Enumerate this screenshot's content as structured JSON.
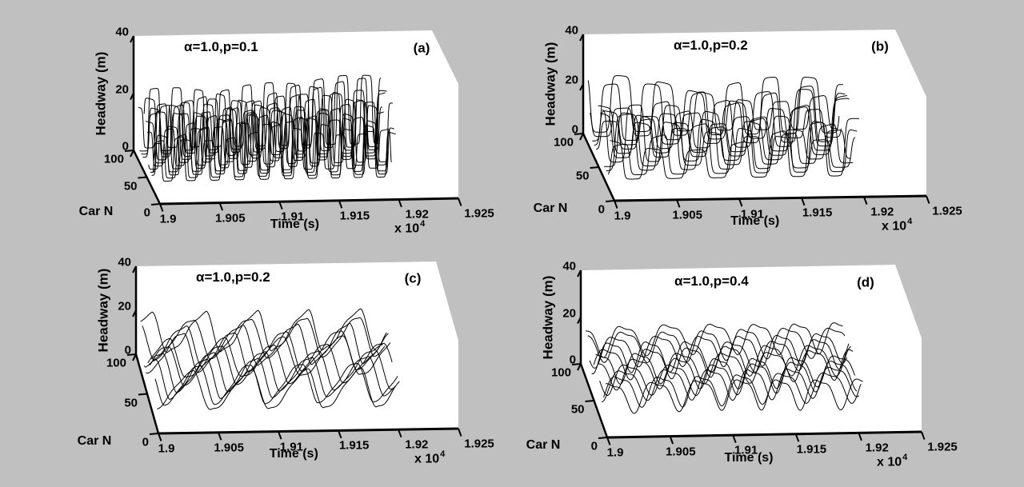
{
  "figure": {
    "type": "matlab-3d-waterfall-figure",
    "background_color": "#c0c0c0",
    "plot_background_color": "#ffffff",
    "line_color": "#000000",
    "description": "Four 3D wireframe subplots of vehicle headway vs time vs car number for different randomization probabilities p"
  },
  "chart_data": [
    {
      "panel": "a",
      "letter": "(a)",
      "annotation": "α=1.0,p=0.1",
      "type": "line3d-waterfall",
      "xlabel": "Time (s)",
      "ylabel": "Car N",
      "zlabel": "Headway (m)",
      "x_tick_labels": [
        "1.9",
        "1.905",
        "1.91",
        "1.915",
        "1.92",
        "1.925"
      ],
      "x_tick_values_s": [
        19000,
        19050,
        19100,
        19150,
        19200,
        19250
      ],
      "x_scale_label": "x 10",
      "x_scale_exponent": "4",
      "y_tick_labels": [
        "100",
        "50",
        "0"
      ],
      "z_tick_labels": [
        "40",
        "20",
        "0"
      ],
      "x_range_s": [
        19000,
        19250
      ],
      "y_range_cars": [
        0,
        100
      ],
      "z_range_m": [
        0,
        40
      ],
      "wave": {
        "shape": "pulse",
        "cycles": 13,
        "base_m": 1.5,
        "amp_m": 23,
        "gain": 4.5,
        "n_curves": 12,
        "car_back": 96,
        "car_front": 34,
        "t_end_frac": 0.82,
        "delay_span_frac": 0.14,
        "seed": 11
      }
    },
    {
      "panel": "b",
      "letter": "(b)",
      "annotation": "α=1.0,p=0.2",
      "type": "line3d-waterfall",
      "xlabel": "Time (s)",
      "ylabel": "Car N",
      "zlabel": "Headway (m)",
      "x_tick_labels": [
        "1.9",
        "1.905",
        "1.91",
        "1.915",
        "1.92",
        "1.925"
      ],
      "x_tick_values_s": [
        19000,
        19050,
        19100,
        19150,
        19200,
        19250
      ],
      "x_scale_label": "x 10",
      "x_scale_exponent": "4",
      "y_tick_labels": [
        "100",
        "50",
        "0"
      ],
      "z_tick_labels": [
        "40",
        "20",
        "0"
      ],
      "x_range_s": [
        19000,
        19250
      ],
      "y_range_cars": [
        0,
        100
      ],
      "z_range_m": [
        0,
        40
      ],
      "wave": {
        "shape": "pulse",
        "cycles": 8,
        "base_m": 1.5,
        "amp_m": 22,
        "gain": 3.5,
        "n_curves": 12,
        "car_back": 96,
        "car_front": 26,
        "t_end_frac": 0.81,
        "delay_span_frac": 0.22,
        "seed": 22
      }
    },
    {
      "panel": "c",
      "letter": "(c)",
      "annotation": "α=1.0,p=0.2",
      "type": "line3d-waterfall",
      "xlabel": "Time (s)",
      "ylabel": "Car N",
      "zlabel": "Headway (m)",
      "x_tick_labels": [
        "1.9",
        "1.905",
        "1.91",
        "1.915",
        "1.92",
        "1.925"
      ],
      "x_tick_values_s": [
        19000,
        19050,
        19100,
        19150,
        19200,
        19250
      ],
      "x_scale_label": "x 10",
      "x_scale_exponent": "4",
      "y_tick_labels": [
        "100",
        "50",
        "0"
      ],
      "z_tick_labels": [
        "40",
        "20",
        "0"
      ],
      "x_range_s": [
        19000,
        19250
      ],
      "y_range_cars": [
        0,
        100
      ],
      "z_range_m": [
        0,
        40
      ],
      "wave": {
        "shape": "sawtooth",
        "cycles": 5.5,
        "base_m": 2,
        "amp_m": 18,
        "gain": 0,
        "n_curves": 10,
        "car_back": 96,
        "car_front": 22,
        "t_end_frac": 0.82,
        "delay_span_frac": 0.27,
        "seed": 33
      }
    },
    {
      "panel": "d",
      "letter": "(d)",
      "annotation": "α=1.0,p=0.4",
      "type": "line3d-waterfall",
      "xlabel": "Time (s)",
      "ylabel": "Car N",
      "zlabel": "Headway (m)",
      "x_tick_labels": [
        "1.9",
        "1.905",
        "1.91",
        "1.915",
        "1.92",
        "1.925"
      ],
      "x_tick_values_s": [
        19000,
        19050,
        19100,
        19150,
        19200,
        19250
      ],
      "x_scale_label": "x 10",
      "x_scale_exponent": "4",
      "y_tick_labels": [
        "100",
        "50",
        "0"
      ],
      "z_tick_labels": [
        "40",
        "20",
        "0"
      ],
      "x_range_s": [
        19000,
        19250
      ],
      "y_range_cars": [
        0,
        100
      ],
      "z_range_m": [
        0,
        40
      ],
      "wave": {
        "shape": "wave",
        "cycles": 7.5,
        "base_m": 6,
        "amp_m": 12,
        "gain": 0,
        "n_curves": 11,
        "car_back": 96,
        "car_front": 20,
        "t_end_frac": 0.83,
        "delay_span_frac": 0.25,
        "seed": 44
      }
    }
  ]
}
